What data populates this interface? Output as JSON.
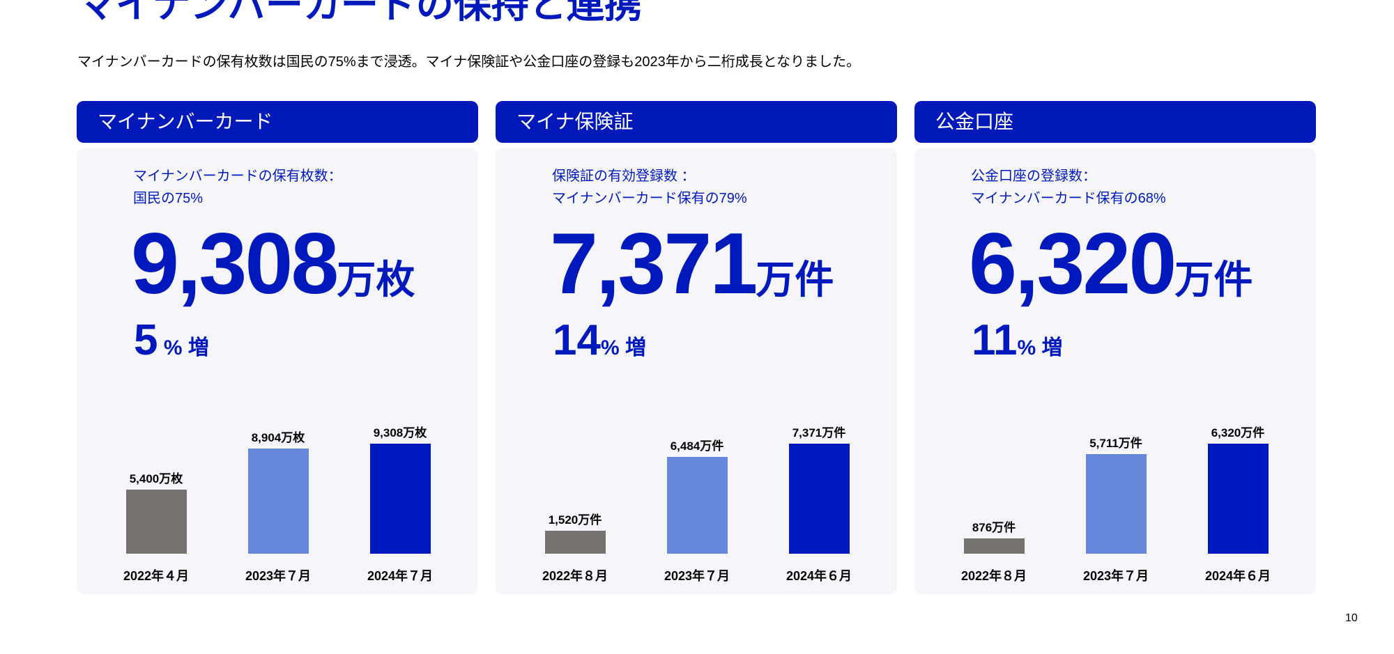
{
  "title": "マイナンバーカードの保持と連携",
  "lead": "マイナンバーカードの保有枚数は国民の75%まで浸透。マイナ保険証や公金口座の登録も2023年から二桁成長となりました。",
  "page_number": "10",
  "colors": {
    "header": "#0019B8",
    "accent": "#0019BC",
    "bar_2022": "#767270",
    "bar_2023": "#6787DB",
    "bar_2024": "#0019BF",
    "card_bg": "#F6F6FA"
  },
  "panels": [
    {
      "header": "マイナンバーカード",
      "desc1": "マイナンバーカードの保有枚数：",
      "desc2": "国民の75%",
      "big_num": "9,308",
      "big_unit": "万枚",
      "growth_num": "5",
      "growth_unit": " % 増"
    },
    {
      "header": "マイナ保険証",
      "desc1": "保険証の有効登録数 ：",
      "desc2": "マイナンバーカード保有の79%",
      "big_num": "7,371",
      "big_unit": "万件",
      "growth_num": "14",
      "growth_unit": "% 増"
    },
    {
      "header": "公金口座",
      "desc1": "公金口座の登録数：",
      "desc2": "マイナンバーカード保有の68%",
      "big_num": "6,320",
      "big_unit": "万件",
      "growth_num": "11",
      "growth_unit": "% 増"
    }
  ],
  "chart_data": [
    {
      "type": "bar",
      "unit": "万枚",
      "categories": [
        "2022年４月",
        "2023年７月",
        "2024年７月"
      ],
      "values": [
        5400,
        8904,
        9308
      ],
      "labels": [
        "5,400万枚",
        "8,904万枚",
        "9,308万枚"
      ]
    },
    {
      "type": "bar",
      "unit": "万件",
      "categories": [
        "2022年８月",
        "2023年７月",
        "2024年６月"
      ],
      "values": [
        1520,
        6484,
        7371
      ],
      "labels": [
        "1,520万件",
        "6,484万件",
        "7,371万件"
      ]
    },
    {
      "type": "bar",
      "unit": "万件",
      "categories": [
        "2022年８月",
        "2023年７月",
        "2024年６月"
      ],
      "values": [
        876,
        5711,
        6320
      ],
      "labels": [
        "876万件",
        "5,711万件",
        "6,320万件"
      ]
    }
  ]
}
